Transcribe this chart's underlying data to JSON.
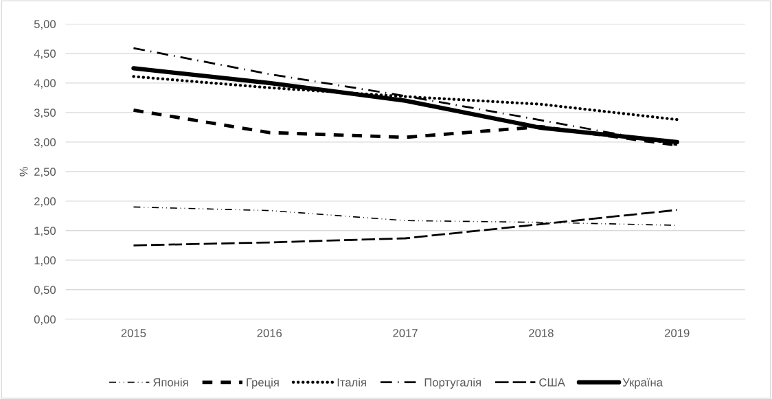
{
  "chart_data": {
    "type": "line",
    "ylabel": "%",
    "categories": [
      "2015",
      "2016",
      "2017",
      "2018",
      "2019"
    ],
    "ylim": [
      0,
      5
    ],
    "yticks": [
      {
        "value": 0,
        "label": "0,00"
      },
      {
        "value": 0.5,
        "label": "0,50"
      },
      {
        "value": 1,
        "label": "1,00"
      },
      {
        "value": 1.5,
        "label": "1,50"
      },
      {
        "value": 2,
        "label": "2,00"
      },
      {
        "value": 2.5,
        "label": "2,50"
      },
      {
        "value": 3,
        "label": "3,00"
      },
      {
        "value": 3.5,
        "label": "3,50"
      },
      {
        "value": 4,
        "label": "4,00"
      },
      {
        "value": 4.5,
        "label": "4,50"
      },
      {
        "value": 5,
        "label": "5,00"
      }
    ],
    "grid": "y",
    "legend": "bottom",
    "marker": "none",
    "series": [
      {
        "name": "Японія",
        "color": "#000000",
        "line_style": "dashdotdot",
        "values": [
          1.9,
          1.84,
          1.67,
          1.64,
          1.59
        ]
      },
      {
        "name": "Греція",
        "color": "#000000",
        "line_style": "dashed",
        "values": [
          3.54,
          3.16,
          3.08,
          3.26,
          2.95
        ]
      },
      {
        "name": "Італія",
        "color": "#000000",
        "line_style": "dotted",
        "values": [
          4.11,
          3.92,
          3.77,
          3.64,
          3.38
        ]
      },
      {
        "name": "Португалія",
        "color": "#000000",
        "line_style": "dashdot",
        "values": [
          4.59,
          4.15,
          3.78,
          3.37,
          2.95
        ]
      },
      {
        "name": "США",
        "color": "#000000",
        "line_style": "longdash",
        "values": [
          1.25,
          1.3,
          1.37,
          1.61,
          1.85
        ]
      },
      {
        "name": "Україна",
        "color": "#000000",
        "line_style": "solid",
        "values": [
          4.25,
          4.0,
          3.7,
          3.24,
          3.0
        ]
      }
    ]
  }
}
